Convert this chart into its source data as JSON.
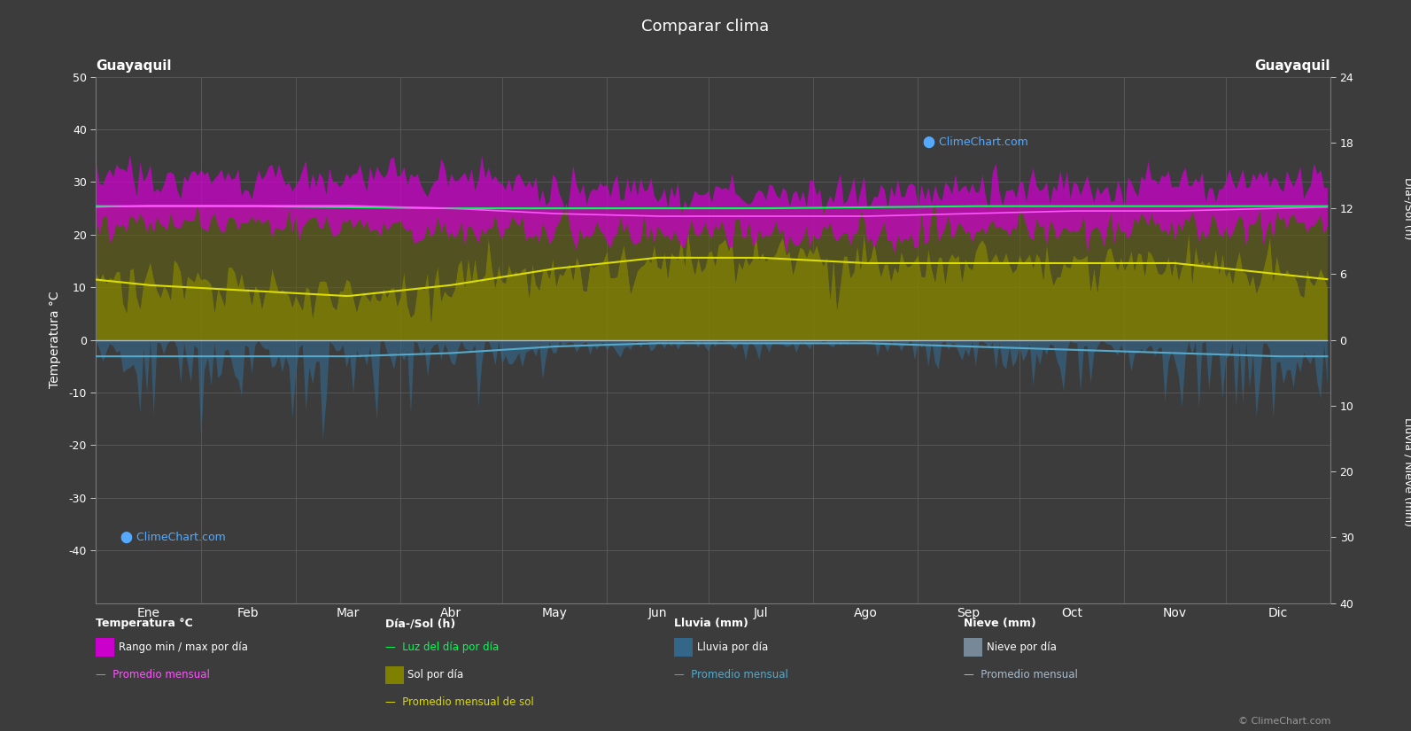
{
  "title": "Comparar clima",
  "city_left": "Guayaquil",
  "city_right": "Guayaquil",
  "background_color": "#3c3c3c",
  "plot_bg_color": "#3c3c3c",
  "months": [
    "Ene",
    "Feb",
    "Mar",
    "Abr",
    "May",
    "Jun",
    "Jul",
    "Ago",
    "Sep",
    "Oct",
    "Nov",
    "Dic"
  ],
  "days_per_month": [
    31,
    28,
    31,
    30,
    31,
    30,
    31,
    31,
    30,
    31,
    30,
    31
  ],
  "ylim_left": [
    -50,
    50
  ],
  "temp_min_monthly": [
    22,
    22,
    22,
    21,
    21,
    20,
    20,
    20,
    21,
    21,
    21,
    22
  ],
  "temp_max_monthly": [
    31,
    31,
    31,
    31,
    29,
    28,
    28,
    28,
    29,
    29,
    30,
    31
  ],
  "temp_avg_monthly": [
    25.5,
    25.5,
    25.5,
    25.0,
    24.0,
    23.5,
    23.5,
    23.5,
    24.0,
    24.5,
    24.5,
    25.0
  ],
  "daylight_monthly": [
    12.2,
    12.2,
    12.1,
    12.0,
    12.0,
    12.0,
    12.0,
    12.1,
    12.2,
    12.2,
    12.2,
    12.2
  ],
  "sunshine_monthly": [
    5.0,
    4.5,
    4.0,
    5.0,
    6.5,
    7.5,
    7.5,
    7.0,
    7.0,
    7.0,
    7.0,
    6.0
  ],
  "rain_avg_monthly": [
    2.5,
    2.5,
    2.5,
    2.0,
    1.0,
    0.5,
    0.5,
    0.5,
    1.0,
    1.5,
    2.0,
    2.5
  ],
  "rain_max_monthly": [
    15,
    15,
    15,
    12,
    5,
    3,
    3,
    3,
    5,
    8,
    10,
    12
  ],
  "snow_avg_monthly": [
    0,
    0,
    0,
    0,
    0,
    0,
    0,
    0,
    0,
    0,
    0,
    0
  ],
  "noise_seed": 42,
  "temp_noise_scale": 1.8,
  "sunshine_noise_scale": 1.2,
  "rain_noise_scale": 1.5,
  "sol_max": 24,
  "rain_max": 40,
  "sol_ticks": [
    0,
    6,
    12,
    18,
    24
  ],
  "rain_ticks": [
    0,
    10,
    20,
    30,
    40
  ],
  "left_ticks": [
    -40,
    -30,
    -20,
    -10,
    0,
    10,
    20,
    30,
    40,
    50
  ],
  "grid_color": "#606060",
  "temp_band_color": "#cc00cc",
  "temp_avg_color": "#ff55ff",
  "daylight_color": "#00ff55",
  "sunshine_fill_color": "#808000",
  "sunshine_day_color": "#606010",
  "sunshine_avg_color": "#dddd00",
  "rain_fill_color": "#336688",
  "rain_avg_color": "#55aacc",
  "snow_fill_color": "#778899",
  "snow_avg_color": "#aabbcc",
  "logo_color": "#55aaff",
  "copyright_color": "#999999",
  "text_color": "#ffffff",
  "logo_text_lower": "ClimeChart.com",
  "logo_text_upper": "ClimeChart.com",
  "copyright_text": "© ClimeChart.com",
  "ylabel_left": "Temperatura °C",
  "ylabel_right_top": "Día-/Sol (h)",
  "ylabel_right_bottom": "Lluvia / Nieve (mm)",
  "legend_temp_title": "Temperatura °C",
  "legend_temp_band": "Rango min / max por día",
  "legend_temp_avg": "Promedio mensual",
  "legend_sol_title": "Día-/Sol (h)",
  "legend_sol_day": "Luz del día por día",
  "legend_sol_sun": "Sol por día",
  "legend_sol_avg": "Promedio mensual de sol",
  "legend_rain_title": "Lluvia (mm)",
  "legend_rain_day": "Lluvia por día",
  "legend_rain_avg": "Promedio mensual",
  "legend_snow_title": "Nieve (mm)",
  "legend_snow_day": "Nieve por día",
  "legend_snow_avg": "Promedio mensual"
}
